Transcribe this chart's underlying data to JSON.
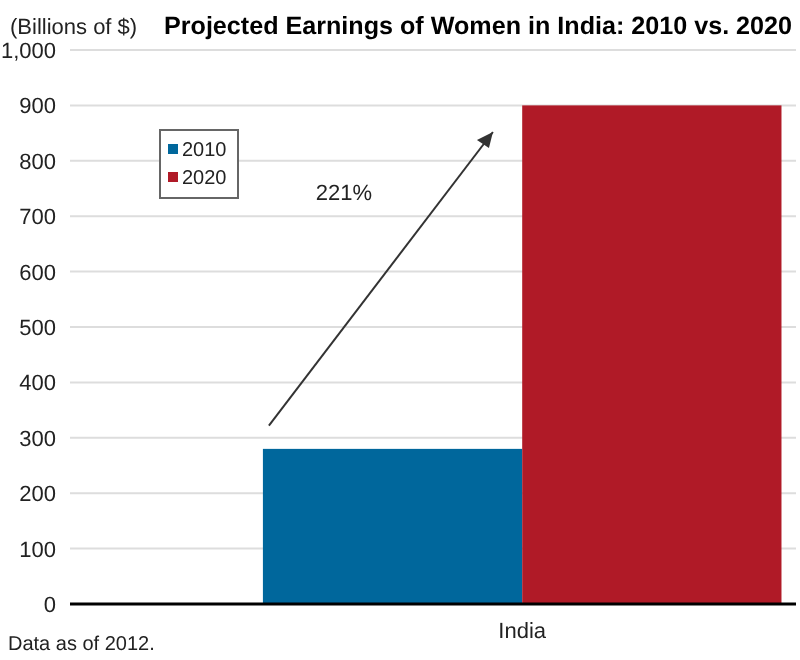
{
  "chart_data": {
    "type": "bar",
    "title": "Projected Earnings of Women in India: 2010 vs. 2020",
    "ylabel": "(Billions of $)",
    "categories": [
      "India"
    ],
    "series": [
      {
        "name": "2010",
        "color": "#00679c",
        "values": [
          280
        ]
      },
      {
        "name": "2020",
        "color": "#b01a27",
        "values": [
          900
        ]
      }
    ],
    "ylim": [
      0,
      1000
    ],
    "yticks": [
      0,
      100,
      200,
      300,
      400,
      500,
      600,
      700,
      800,
      900,
      {
        "value": 1000,
        "label": "1,000"
      }
    ],
    "grid": "y",
    "legend": "top left",
    "annotations": [
      "221%",
      "Data as of 2012."
    ]
  }
}
